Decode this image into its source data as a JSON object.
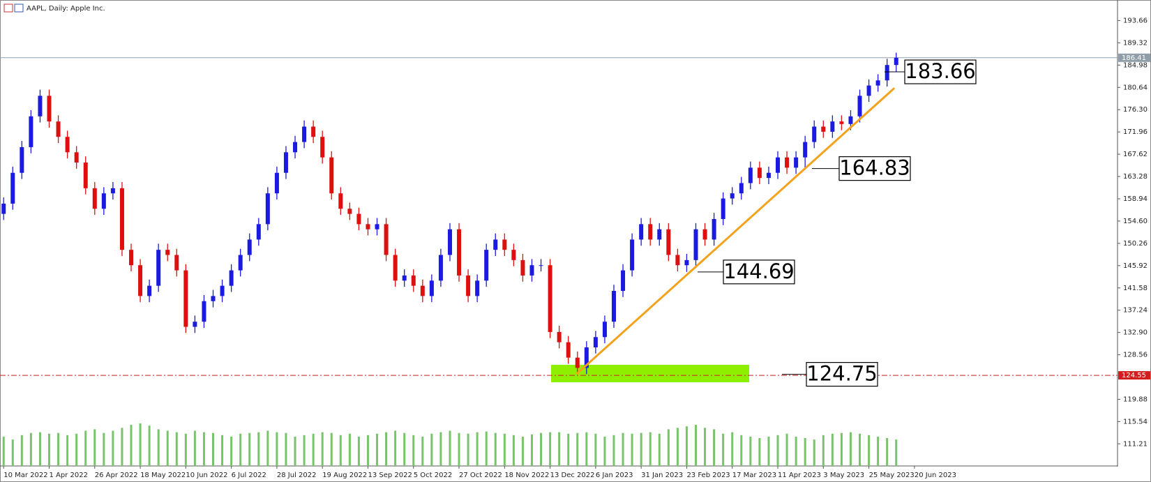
{
  "chart_data": {
    "type": "candlestick",
    "title": "AAPL, Daily:  Apple Inc.",
    "up_color": "#1a1ae0",
    "down_color": "#dd0f0f",
    "open": [
      156,
      158,
      164,
      169,
      175,
      179,
      174,
      171,
      168,
      166,
      161,
      157,
      160,
      161,
      149,
      146,
      140,
      142,
      149,
      148,
      145,
      134,
      135,
      139,
      140,
      142,
      145,
      148,
      151,
      154,
      160,
      164,
      168,
      170,
      173,
      171,
      167,
      160,
      157,
      156,
      154,
      153,
      154,
      148,
      143,
      144,
      142,
      140,
      143,
      148,
      153,
      144,
      140,
      143,
      149,
      151,
      149,
      147,
      144,
      146,
      146,
      133,
      131,
      128,
      126,
      130,
      132,
      135,
      141,
      145,
      151,
      154,
      151,
      153,
      148,
      146,
      147,
      153,
      151,
      155,
      159,
      160,
      162,
      165,
      163,
      164,
      167,
      165,
      167,
      170,
      173,
      172,
      174,
      173.5,
      175,
      179,
      181,
      182,
      185
    ],
    "high": [
      159.2,
      165.2,
      170.2,
      176.2,
      180.2,
      180.2,
      175.2,
      172.2,
      169.2,
      167.2,
      162.2,
      161.2,
      162.2,
      162.2,
      150.2,
      147.2,
      143.2,
      150.2,
      150.2,
      149.2,
      146.2,
      136.2,
      140.2,
      141.2,
      143.2,
      146.2,
      149.2,
      152.2,
      155.2,
      161.2,
      165.2,
      169.2,
      171.2,
      174.2,
      174.2,
      172.2,
      168.2,
      161.2,
      158.2,
      157.2,
      155.2,
      155.2,
      155.2,
      149.2,
      145.2,
      145.2,
      143.2,
      144.2,
      149.2,
      154.2,
      154.2,
      145.2,
      144.2,
      150.2,
      152.2,
      152.2,
      150.2,
      148.2,
      147.2,
      147.2,
      147.2,
      134.2,
      132.2,
      129.2,
      131.2,
      133.2,
      136.2,
      142.2,
      146.2,
      152.2,
      155.2,
      155.2,
      154.2,
      154.2,
      149.2,
      148.2,
      154.2,
      154.2,
      156.2,
      160.2,
      161.2,
      163.2,
      166.2,
      166.2,
      165.2,
      168.2,
      168.2,
      168.2,
      171.2,
      174.2,
      174.2,
      175.2,
      175.2,
      176.2,
      180.2,
      182.2,
      183.2,
      186.2,
      187.4
    ],
    "low": [
      154.8,
      156.8,
      162.8,
      167.8,
      173.8,
      172.8,
      169.8,
      166.8,
      164.8,
      159.8,
      155.8,
      155.8,
      158.8,
      147.8,
      144.8,
      138.8,
      138.8,
      140.8,
      146.8,
      143.8,
      132.8,
      132.8,
      133.8,
      137.8,
      138.8,
      140.8,
      143.8,
      146.8,
      149.8,
      152.8,
      158.8,
      162.8,
      166.8,
      168.8,
      169.8,
      165.8,
      158.8,
      155.8,
      154.8,
      152.8,
      151.8,
      151.8,
      146.8,
      141.8,
      141.8,
      140.8,
      138.8,
      138.8,
      141.8,
      146.8,
      142.8,
      138.8,
      138.8,
      141.8,
      147.8,
      147.8,
      145.8,
      142.8,
      142.8,
      144.8,
      131.8,
      129.8,
      126.8,
      124.75,
      124.8,
      128.8,
      130.8,
      133.8,
      139.8,
      143.8,
      149.8,
      149.8,
      149.8,
      146.8,
      144.8,
      144.69,
      145.8,
      149.8,
      149.8,
      153.8,
      157.8,
      158.8,
      160.8,
      161.8,
      161.8,
      162.8,
      163.8,
      163.8,
      164.83,
      168.8,
      170.8,
      170.8,
      172.3,
      172.3,
      173.8,
      177.8,
      179.8,
      180.8,
      183.66
    ],
    "close": [
      158,
      164,
      169,
      175,
      179,
      174,
      171,
      168,
      166,
      161,
      157,
      160,
      161,
      149,
      146,
      140,
      142,
      149,
      148,
      145,
      134,
      135,
      139,
      140,
      142,
      145,
      148,
      151,
      154,
      160,
      164,
      168,
      170,
      173,
      171,
      167,
      160,
      157,
      156,
      154,
      153,
      154,
      148,
      143,
      144,
      142,
      140,
      143,
      148,
      153,
      144,
      140,
      143,
      149,
      151,
      149,
      147,
      144,
      146,
      146,
      133,
      131,
      128,
      126,
      130,
      132,
      135,
      141,
      145,
      151,
      154,
      151,
      153,
      148,
      146,
      147,
      153,
      151,
      155,
      159,
      160,
      162,
      165,
      163,
      164,
      167,
      165,
      167,
      170,
      173,
      172,
      174,
      173.5,
      175,
      179,
      181,
      182,
      185,
      186.41
    ],
    "volume": {
      "color": "#78c46a",
      "axis": "y2",
      "values": [
        40,
        36,
        42,
        45,
        46,
        44,
        45,
        42,
        44,
        48,
        50,
        45,
        48,
        52,
        56,
        58,
        55,
        50,
        48,
        46,
        44,
        48,
        46,
        45,
        42,
        40,
        44,
        45,
        46,
        48,
        46,
        45,
        40,
        42,
        44,
        46,
        45,
        42,
        44,
        40,
        42,
        44,
        46,
        48,
        45,
        42,
        40,
        44,
        46,
        48,
        45,
        44,
        46,
        47,
        45,
        44,
        42,
        40,
        43,
        45,
        46,
        46,
        44,
        45,
        46,
        44,
        40,
        42,
        45,
        44,
        45,
        46,
        44,
        50,
        52,
        54,
        56,
        52,
        50,
        44,
        46,
        42,
        40,
        38,
        40,
        42,
        44,
        40,
        38,
        36,
        42,
        44,
        45,
        46,
        44,
        42,
        40,
        38,
        36
      ]
    },
    "xlim": [
      -0.4,
      122.3
    ],
    "xticks": [
      {
        "value": 0,
        "label": "10 Mar 2022"
      },
      {
        "value": 5,
        "label": "1 Apr 2022"
      },
      {
        "value": 10,
        "label": "26 Apr 2022"
      },
      {
        "value": 15,
        "label": "18 May 2022"
      },
      {
        "value": 20,
        "label": "10 Jun 2022"
      },
      {
        "value": 25,
        "label": "6 Jul 2022"
      },
      {
        "value": 30,
        "label": "28 Jul 2022"
      },
      {
        "value": 35,
        "label": "19 Aug 2022"
      },
      {
        "value": 40,
        "label": "13 Sep 2022"
      },
      {
        "value": 45,
        "label": "5 Oct 2022"
      },
      {
        "value": 50,
        "label": "27 Oct 2022"
      },
      {
        "value": 55,
        "label": "18 Nov 2022"
      },
      {
        "value": 60,
        "label": "13 Dec 2022"
      },
      {
        "value": 65,
        "label": "6 Jan 2023"
      },
      {
        "value": 70,
        "label": "31 Jan 2023"
      },
      {
        "value": 75,
        "label": "23 Feb 2023"
      },
      {
        "value": 80,
        "label": "17 Mar 2023"
      },
      {
        "value": 85,
        "label": "11 Apr 2023"
      },
      {
        "value": 90,
        "label": "3 May 2023"
      },
      {
        "value": 95,
        "label": "25 May 2023"
      },
      {
        "value": 100,
        "label": "20 Jun 2023"
      }
    ],
    "ylim": [
      106.9,
      197.66
    ],
    "yticks": [
      193.66,
      189.32,
      184.98,
      180.64,
      {
        "value": 176.3,
        "label": "176.30"
      },
      171.96,
      167.62,
      163.28,
      158.94,
      {
        "value": 154.6,
        "label": "154.60"
      },
      150.26,
      145.92,
      141.58,
      137.24,
      {
        "value": 132.9,
        "label": "132.90"
      },
      128.56,
      119.88,
      115.54,
      111.21
    ],
    "y2lim": [
      0,
      635
    ],
    "price_lines": [
      {
        "value": 186.41,
        "color": "#8f9ea9",
        "style": "solid"
      },
      {
        "value": 124.55,
        "color": "#d41c1c",
        "style": "dashdot"
      }
    ],
    "support_zone": {
      "ylim": [
        123.2,
        126.6
      ],
      "color": "#8ef000"
    },
    "trendline": {
      "color": "#f2a21d",
      "from": [
        62.9,
        124.8
      ],
      "to": [
        97.8,
        180.5
      ]
    },
    "annotations": [
      183.66,
      164.83,
      144.69,
      124.75
    ]
  }
}
